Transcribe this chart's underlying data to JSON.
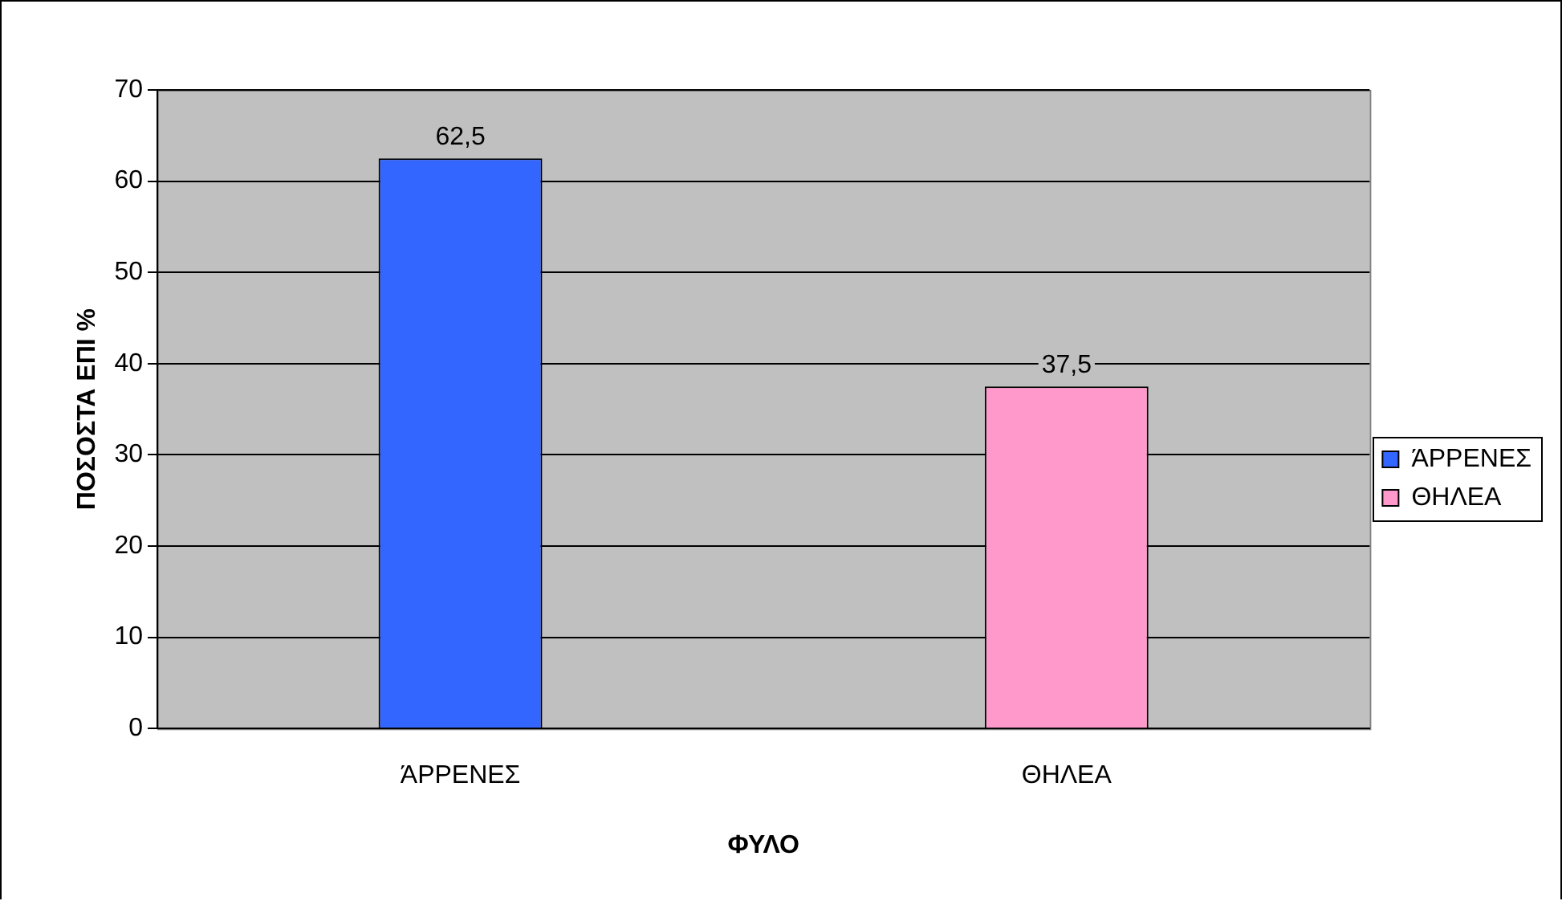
{
  "chart_data": {
    "type": "bar",
    "ylabel": "ΠΟΣΟΣΤΑ ΕΠΙ %",
    "xlabel": "ΦΥΛΟ",
    "categories": [
      "ΆΡΡΕΝΕΣ",
      "ΘΗΛΕΑ"
    ],
    "series": [
      {
        "name": "ΆΡΡΕΝΕΣ",
        "color": "#3366ff",
        "values": [
          62.5,
          null
        ],
        "value_labels": [
          "62,5",
          null
        ]
      },
      {
        "name": "ΘΗΛΕΑ",
        "color": "#ff99cc",
        "values": [
          null,
          37.5
        ],
        "value_labels": [
          null,
          "37,5"
        ]
      }
    ],
    "ylim": [
      0,
      70
    ],
    "yticks": [
      0,
      10,
      20,
      30,
      40,
      50,
      60,
      70
    ],
    "grid": "y",
    "legend": "right"
  }
}
